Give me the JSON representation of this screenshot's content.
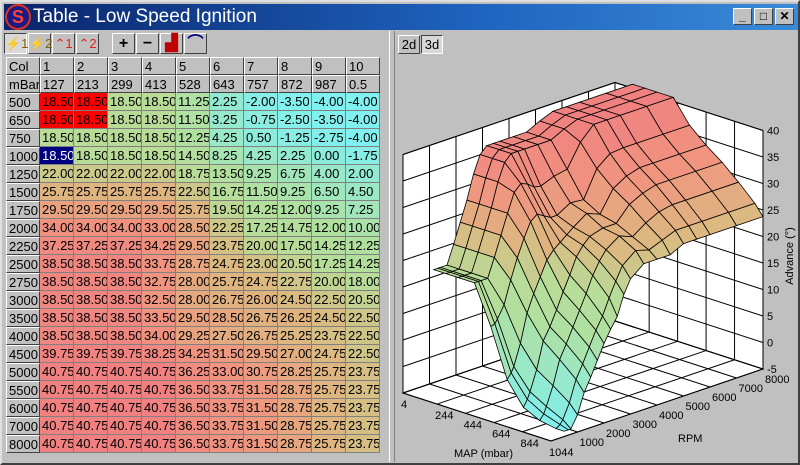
{
  "window": {
    "title": "Table - Low Speed Ignition",
    "minimize": "_",
    "maximize": "□",
    "close": "✕"
  },
  "toolbar": [
    {
      "icon": "ignition-1-icon",
      "label": "⚡1",
      "pressed": true
    },
    {
      "icon": "ignition-2-icon",
      "label": "⚡2",
      "pressed": false
    },
    {
      "icon": "boost-1-icon",
      "label": "⌃1",
      "pressed": false
    },
    {
      "icon": "boost-2-icon",
      "label": "⌃2",
      "pressed": false
    },
    {
      "icon": "plus-icon",
      "label": "+",
      "pressed": false
    },
    {
      "icon": "minus-icon",
      "label": "−",
      "pressed": false
    },
    {
      "icon": "ramp-icon",
      "label": "▟",
      "pressed": false
    },
    {
      "icon": "curve-icon",
      "label": "⌒",
      "pressed": false
    }
  ],
  "table": {
    "corner_col": "Col",
    "corner_row": "mBar",
    "columns": [
      "1",
      "2",
      "3",
      "4",
      "5",
      "6",
      "7",
      "8",
      "9",
      "10"
    ],
    "mbar": [
      "127",
      "213",
      "299",
      "413",
      "528",
      "643",
      "757",
      "872",
      "987",
      "0.5"
    ],
    "rows": [
      {
        "rpm": "500",
        "values": [
          "18.50",
          "18.50",
          "18.50",
          "18.50",
          "11.25",
          "2.25",
          "-2.00",
          "-3.50",
          "-4.00",
          "-4.00"
        ]
      },
      {
        "rpm": "650",
        "values": [
          "18.50",
          "18.50",
          "18.50",
          "18.50",
          "11.50",
          "3.25",
          "-0.75",
          "-2.50",
          "-3.50",
          "-4.00"
        ]
      },
      {
        "rpm": "750",
        "values": [
          "18.50",
          "18.50",
          "18.50",
          "18.50",
          "12.25",
          "4.25",
          "0.50",
          "-1.25",
          "-2.75",
          "-4.00"
        ]
      },
      {
        "rpm": "1000",
        "values": [
          "18.50",
          "18.50",
          "18.50",
          "18.50",
          "14.50",
          "8.25",
          "4.25",
          "2.25",
          "0.00",
          "-1.75"
        ]
      },
      {
        "rpm": "1250",
        "values": [
          "22.00",
          "22.00",
          "22.00",
          "22.00",
          "18.75",
          "13.50",
          "9.25",
          "6.75",
          "4.00",
          "2.00"
        ]
      },
      {
        "rpm": "1500",
        "values": [
          "25.75",
          "25.75",
          "25.75",
          "25.75",
          "22.50",
          "16.75",
          "11.50",
          "9.25",
          "6.50",
          "4.50"
        ]
      },
      {
        "rpm": "1750",
        "values": [
          "29.50",
          "29.50",
          "29.50",
          "29.50",
          "25.75",
          "19.50",
          "14.25",
          "12.00",
          "9.25",
          "7.25"
        ]
      },
      {
        "rpm": "2000",
        "values": [
          "34.00",
          "34.00",
          "34.00",
          "33.00",
          "28.50",
          "22.25",
          "17.25",
          "14.75",
          "12.00",
          "10.00"
        ]
      },
      {
        "rpm": "2250",
        "values": [
          "37.25",
          "37.25",
          "37.25",
          "34.25",
          "29.50",
          "23.75",
          "20.00",
          "17.50",
          "14.25",
          "12.25"
        ]
      },
      {
        "rpm": "2500",
        "values": [
          "38.50",
          "38.50",
          "38.50",
          "33.75",
          "28.75",
          "24.75",
          "23.00",
          "20.50",
          "17.25",
          "14.25"
        ]
      },
      {
        "rpm": "2750",
        "values": [
          "38.50",
          "38.50",
          "38.50",
          "32.75",
          "28.00",
          "25.75",
          "24.75",
          "22.75",
          "20.00",
          "18.00"
        ]
      },
      {
        "rpm": "3000",
        "values": [
          "38.50",
          "38.50",
          "38.50",
          "32.50",
          "28.00",
          "26.75",
          "26.00",
          "24.50",
          "22.50",
          "20.50"
        ]
      },
      {
        "rpm": "3500",
        "values": [
          "38.50",
          "38.50",
          "38.50",
          "33.50",
          "29.50",
          "28.50",
          "26.75",
          "26.25",
          "24.50",
          "22.50"
        ]
      },
      {
        "rpm": "4000",
        "values": [
          "38.50",
          "38.50",
          "38.50",
          "34.00",
          "29.25",
          "27.50",
          "26.75",
          "25.25",
          "23.75",
          "22.50"
        ]
      },
      {
        "rpm": "4500",
        "values": [
          "39.75",
          "39.75",
          "39.75",
          "38.25",
          "34.25",
          "31.50",
          "29.50",
          "27.00",
          "24.75",
          "22.50"
        ]
      },
      {
        "rpm": "5000",
        "values": [
          "40.75",
          "40.75",
          "40.75",
          "40.75",
          "36.25",
          "33.00",
          "30.75",
          "28.25",
          "25.75",
          "23.75"
        ]
      },
      {
        "rpm": "5500",
        "values": [
          "40.75",
          "40.75",
          "40.75",
          "40.75",
          "36.50",
          "33.75",
          "31.50",
          "28.75",
          "25.75",
          "23.75"
        ]
      },
      {
        "rpm": "6000",
        "values": [
          "40.75",
          "40.75",
          "40.75",
          "40.75",
          "36.50",
          "33.75",
          "31.50",
          "28.75",
          "25.75",
          "23.75"
        ]
      },
      {
        "rpm": "7000",
        "values": [
          "40.75",
          "40.75",
          "40.75",
          "40.75",
          "36.50",
          "33.75",
          "31.50",
          "28.75",
          "25.75",
          "23.75"
        ]
      },
      {
        "rpm": "8000",
        "values": [
          "40.75",
          "40.75",
          "40.75",
          "40.75",
          "36.50",
          "33.75",
          "31.50",
          "28.75",
          "25.75",
          "23.75"
        ]
      }
    ],
    "highlighted_cells": [
      [
        0,
        0
      ],
      [
        0,
        1
      ],
      [
        1,
        0
      ],
      [
        1,
        1
      ]
    ],
    "selected_cell": [
      3,
      0
    ],
    "highlight_color": "#ff0000",
    "selected_color": "#000080"
  },
  "view_tabs": [
    {
      "label": "2d",
      "active": false
    },
    {
      "label": "3d",
      "active": true
    }
  ],
  "chart_data": {
    "type": "surface3d",
    "xlabel": "MAP (mbar)",
    "ylabel": "RPM",
    "zlabel": "Advance (°)",
    "x_ticks": [
      "4",
      "244",
      "444",
      "644",
      "844",
      "1044"
    ],
    "y_ticks": [
      "1000",
      "2000",
      "3000",
      "4000",
      "5000",
      "6000",
      "7000",
      "8000"
    ],
    "z_ticks": [
      "-5",
      "0",
      "5",
      "10",
      "15",
      "20",
      "25",
      "30",
      "35",
      "40"
    ],
    "xlim": [
      4,
      1044
    ],
    "ylim": [
      0,
      8000
    ],
    "zlim": [
      -5,
      40
    ],
    "colormap": {
      "low": "#80f0f0",
      "mid": "#b8dc98",
      "high": "#f08080"
    }
  }
}
